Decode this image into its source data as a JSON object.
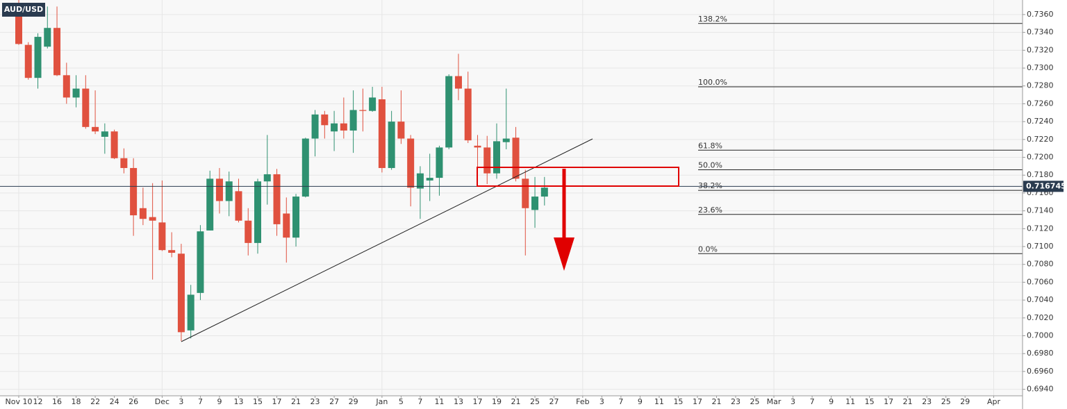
{
  "chart_data": {
    "type": "candlestick",
    "symbol": "AUD/USD",
    "categories": [
      "Nov 10",
      null,
      "12",
      null,
      "16",
      null,
      "18",
      null,
      "22",
      null,
      "24",
      null,
      "26",
      null,
      null,
      "Dec",
      null,
      "3",
      null,
      "7",
      null,
      "9",
      null,
      "13",
      null,
      "15",
      null,
      "17",
      null,
      "21",
      null,
      "23",
      null,
      "27",
      null,
      "29",
      null,
      null,
      "Jan",
      null,
      "5",
      null,
      "7",
      null,
      "11",
      null,
      "13",
      null,
      "17",
      null,
      "19",
      null,
      "21",
      null,
      "25",
      null,
      "27",
      null,
      null,
      "Feb",
      null,
      "3",
      null,
      "7",
      null,
      "9",
      null,
      "11",
      null,
      "15",
      null,
      "17",
      null,
      "21",
      null,
      "23",
      null,
      "25",
      null,
      "Mar",
      null,
      "3",
      null,
      "7",
      null,
      "9",
      null,
      "11",
      null,
      "15",
      null,
      "17",
      null,
      "21",
      null,
      "23",
      null,
      "25",
      null,
      "29",
      null,
      null,
      "Apr",
      null,
      null,
      null
    ],
    "open": [
      0.7372,
      0.7326,
      0.7289,
      0.7324,
      0.7345,
      0.7292,
      0.7267,
      0.7277,
      0.7234,
      0.7223,
      0.7229,
      0.7199,
      0.7188,
      0.7143,
      0.7133,
      0.7127,
      0.7096,
      0.7092,
      0.7006,
      0.7048,
      0.7118,
      0.7176,
      0.7151,
      0.7162,
      0.7129,
      0.7104,
      0.7173,
      0.7181,
      0.7137,
      0.711,
      0.7156,
      0.7221,
      0.7248,
      0.7229,
      0.7238,
      0.723,
      0.7253,
      0.7252,
      0.7265,
      0.7188,
      0.724,
      0.7221,
      0.7165,
      0.7174,
      0.7177,
      0.7211,
      0.7291,
      0.7277,
      0.7213,
      0.7211,
      0.7182,
      0.7217,
      0.7222,
      0.7176,
      0.7141,
      0.7156,
      null,
      null,
      null,
      null,
      null,
      null,
      null,
      null,
      null,
      null,
      null,
      null,
      null,
      null,
      null,
      null,
      null,
      null,
      null,
      null,
      null,
      null,
      null,
      null,
      null,
      null,
      null,
      null,
      null,
      null,
      null,
      null,
      null,
      null,
      null,
      null,
      null,
      null,
      null,
      null,
      null,
      null,
      null,
      null,
      null,
      null,
      null,
      null,
      null,
      null
    ],
    "high": [
      0.738,
      0.7329,
      0.7339,
      0.7369,
      0.7369,
      0.7306,
      0.7292,
      0.7292,
      0.7275,
      0.7238,
      0.7231,
      0.721,
      0.7199,
      0.7166,
      0.7171,
      0.7174,
      0.7116,
      0.7103,
      0.7057,
      0.7124,
      0.7185,
      0.7188,
      0.7184,
      0.7176,
      0.7143,
      0.7176,
      0.7225,
      0.7187,
      0.7155,
      0.7159,
      0.7222,
      0.7253,
      0.7252,
      0.7252,
      0.7267,
      0.7275,
      0.7277,
      0.7279,
      0.7279,
      0.7252,
      0.7275,
      0.7225,
      0.719,
      0.7204,
      0.7213,
      0.7293,
      0.7316,
      0.7296,
      0.7225,
      0.7224,
      0.7238,
      0.7277,
      0.7234,
      0.7186,
      0.7178,
      0.7178,
      null,
      null,
      null,
      null,
      null,
      null,
      null,
      null,
      null,
      null,
      null,
      null,
      null,
      null,
      null,
      null,
      null,
      null,
      null,
      null,
      null,
      null,
      null,
      null,
      null,
      null,
      null,
      null,
      null,
      null,
      null,
      null,
      null,
      null,
      null,
      null,
      null,
      null,
      null,
      null,
      null,
      null,
      null,
      null,
      null,
      null,
      null,
      null,
      null,
      null
    ],
    "low": [
      0.7326,
      0.7287,
      0.7277,
      0.7322,
      0.7291,
      0.726,
      0.7256,
      0.7232,
      0.7226,
      0.7204,
      0.7198,
      0.7182,
      0.7112,
      0.7124,
      0.7063,
      0.7095,
      0.7088,
      0.6994,
      0.6997,
      0.704,
      0.7118,
      0.7137,
      0.7134,
      0.7127,
      0.709,
      0.7092,
      0.7147,
      0.7112,
      0.7082,
      0.71,
      0.7155,
      0.7201,
      0.7221,
      0.7207,
      0.7221,
      0.7205,
      0.7229,
      0.7251,
      0.7183,
      0.7186,
      0.7215,
      0.7145,
      0.7131,
      0.7151,
      0.7157,
      0.7209,
      0.7264,
      0.7216,
      0.7178,
      0.717,
      0.7176,
      0.7209,
      0.7173,
      0.709,
      0.7121,
      0.7146,
      null,
      null,
      null,
      null,
      null,
      null,
      null,
      null,
      null,
      null,
      null,
      null,
      null,
      null,
      null,
      null,
      null,
      null,
      null,
      null,
      null,
      null,
      null,
      null,
      null,
      null,
      null,
      null,
      null,
      null,
      null,
      null,
      null,
      null,
      null,
      null,
      null,
      null,
      null,
      null,
      null,
      null,
      null,
      null,
      null,
      null,
      null,
      null,
      null,
      null
    ],
    "close": [
      0.7327,
      0.7289,
      0.7335,
      0.7345,
      0.7292,
      0.7267,
      0.7277,
      0.7234,
      0.7229,
      0.7229,
      0.7199,
      0.7188,
      0.7135,
      0.7131,
      0.7129,
      0.7096,
      0.7093,
      0.7004,
      0.7046,
      0.7117,
      0.7176,
      0.7151,
      0.7173,
      0.7129,
      0.7104,
      0.7173,
      0.7181,
      0.7125,
      0.711,
      0.7156,
      0.7221,
      0.7248,
      0.7236,
      0.7238,
      0.723,
      0.7253,
      0.7252,
      0.7267,
      0.7188,
      0.724,
      0.7221,
      0.7166,
      0.7182,
      0.7177,
      0.7211,
      0.7291,
      0.7277,
      0.7219,
      0.7211,
      0.7182,
      0.7218,
      0.7221,
      0.7176,
      0.7143,
      0.7156,
      0.7166,
      null,
      null,
      null,
      null,
      null,
      null,
      null,
      null,
      null,
      null,
      null,
      null,
      null,
      null,
      null,
      null,
      null,
      null,
      null,
      null,
      null,
      null,
      null,
      null,
      null,
      null,
      null,
      null,
      null,
      null,
      null,
      null,
      null,
      null,
      null,
      null,
      null,
      null,
      null,
      null,
      null,
      null,
      null,
      null,
      null,
      null,
      null,
      null,
      null,
      null
    ],
    "up_color": "#2f9171",
    "down_color": "#e0513f",
    "ylim": [
      0.69327,
      0.73763
    ],
    "yticks": [
      {
        "value": 0.694,
        "label": "0.6940"
      },
      {
        "value": 0.696,
        "label": "0.6960"
      },
      {
        "value": 0.698,
        "label": "0.6980"
      },
      {
        "value": 0.7,
        "label": "0.7000"
      },
      {
        "value": 0.702,
        "label": "0.7020"
      },
      {
        "value": 0.704,
        "label": "0.7040"
      },
      {
        "value": 0.706,
        "label": "0.7060"
      },
      {
        "value": 0.708,
        "label": "0.7080"
      },
      {
        "value": 0.71,
        "label": "0.7100"
      },
      {
        "value": 0.712,
        "label": "0.7120"
      },
      {
        "value": 0.714,
        "label": "0.7140"
      },
      {
        "value": 0.716,
        "label": "0.7160"
      },
      {
        "value": 0.718,
        "label": "0.7180"
      },
      {
        "value": 0.72,
        "label": "0.7200"
      },
      {
        "value": 0.722,
        "label": "0.7220"
      },
      {
        "value": 0.724,
        "label": "0.7240"
      },
      {
        "value": 0.726,
        "label": "0.7260"
      },
      {
        "value": 0.728,
        "label": "0.7280"
      },
      {
        "value": 0.73,
        "label": "0.7300"
      },
      {
        "value": 0.732,
        "label": "0.7320"
      },
      {
        "value": 0.734,
        "label": "0.7340"
      },
      {
        "value": 0.736,
        "label": "0.7360"
      }
    ],
    "grid": true,
    "last_price": 0.716745,
    "fib_levels": [
      {
        "label": "138.2%",
        "value": 0.735
      },
      {
        "label": "100.0%",
        "value": 0.7279
      },
      {
        "label": "61.8%",
        "value": 0.7208
      },
      {
        "label": "50.0%",
        "value": 0.7186
      },
      {
        "label": "38.2%",
        "value": 0.7163
      },
      {
        "label": "23.6%",
        "value": 0.7136
      },
      {
        "label": "0.0%",
        "value": 0.7092
      }
    ]
  }
}
